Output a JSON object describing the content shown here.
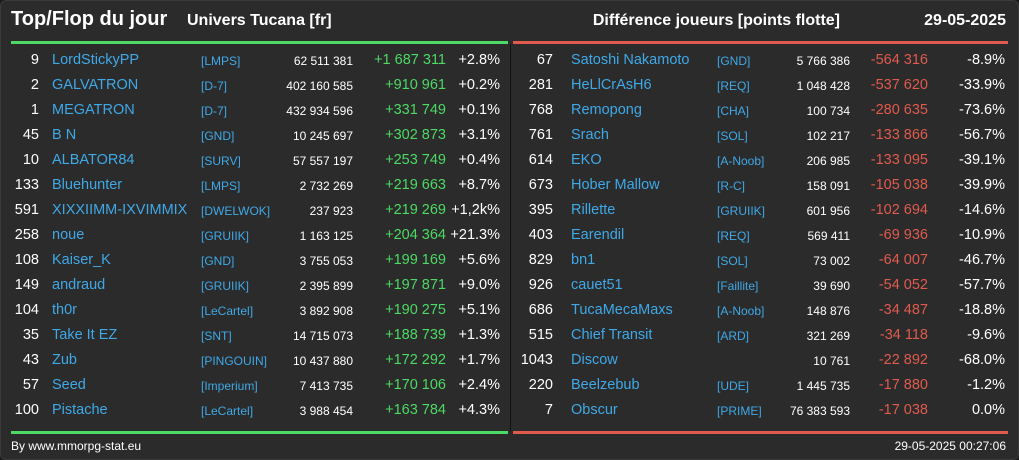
{
  "header": {
    "title": "Top/Flop du jour",
    "universe": "Univers Tucana [fr]",
    "metric": "Différence joueurs [points flotte]",
    "date": "29-05-2025"
  },
  "colors": {
    "gain": "#4cd964",
    "loss": "#e05a4e",
    "name": "#3fa9e8"
  },
  "top": [
    {
      "rank": "9",
      "name": "LordStickyPP",
      "alliance": "[LMPS]",
      "points": "62 511 381",
      "diff": "+1 687 311",
      "pct": "+2.8%"
    },
    {
      "rank": "2",
      "name": "GALVATRON",
      "alliance": "[D-7]",
      "points": "402 160 585",
      "diff": "+910 961",
      "pct": "+0.2%"
    },
    {
      "rank": "1",
      "name": "MEGATRON",
      "alliance": "[D-7]",
      "points": "432 934 596",
      "diff": "+331 749",
      "pct": "+0.1%"
    },
    {
      "rank": "45",
      "name": "B N",
      "alliance": "[GND]",
      "points": "10 245 697",
      "diff": "+302 873",
      "pct": "+3.1%"
    },
    {
      "rank": "10",
      "name": "ALBATOR84",
      "alliance": "[SURV]",
      "points": "57 557 197",
      "diff": "+253 749",
      "pct": "+0.4%"
    },
    {
      "rank": "133",
      "name": "Bluehunter",
      "alliance": "[LMPS]",
      "points": "2 732 269",
      "diff": "+219 663",
      "pct": "+8.7%"
    },
    {
      "rank": "591",
      "name": "XIXXIIMM-IXVIMMIX",
      "alliance": "[DWELWOK]",
      "points": "237 923",
      "diff": "+219 269",
      "pct": "+1,2k%"
    },
    {
      "rank": "258",
      "name": "noue",
      "alliance": "[GRUIIK]",
      "points": "1 163 125",
      "diff": "+204 364",
      "pct": "+21.3%"
    },
    {
      "rank": "108",
      "name": "Kaiser_K",
      "alliance": "[GND]",
      "points": "3 755 053",
      "diff": "+199 169",
      "pct": "+5.6%"
    },
    {
      "rank": "149",
      "name": "andraud",
      "alliance": "[GRUIIK]",
      "points": "2 395 899",
      "diff": "+197 871",
      "pct": "+9.0%"
    },
    {
      "rank": "104",
      "name": "th0r",
      "alliance": "[LeCartel]",
      "points": "3 892 908",
      "diff": "+190 275",
      "pct": "+5.1%"
    },
    {
      "rank": "35",
      "name": "Take It EZ",
      "alliance": "[SNT]",
      "points": "14 715 073",
      "diff": "+188 739",
      "pct": "+1.3%"
    },
    {
      "rank": "43",
      "name": "Zub",
      "alliance": "[PINGOUIN]",
      "points": "10 437 880",
      "diff": "+172 292",
      "pct": "+1.7%"
    },
    {
      "rank": "57",
      "name": "Seed",
      "alliance": "[Imperium]",
      "points": "7 413 735",
      "diff": "+170 106",
      "pct": "+2.4%"
    },
    {
      "rank": "100",
      "name": "Pistache",
      "alliance": "[LeCartel]",
      "points": "3 988 454",
      "diff": "+163 784",
      "pct": "+4.3%"
    }
  ],
  "flop": [
    {
      "rank": "67",
      "name": "Satoshi Nakamoto",
      "alliance": "[GND]",
      "points": "5 766 386",
      "diff": "-564 316",
      "pct": "-8.9%"
    },
    {
      "rank": "281",
      "name": "HeLlCrAsH6",
      "alliance": "[REQ]",
      "points": "1 048 428",
      "diff": "-537 620",
      "pct": "-33.9%"
    },
    {
      "rank": "768",
      "name": "Remopong",
      "alliance": "[CHA]",
      "points": "100 734",
      "diff": "-280 635",
      "pct": "-73.6%"
    },
    {
      "rank": "761",
      "name": "Srach",
      "alliance": "[SOL]",
      "points": "102 217",
      "diff": "-133 866",
      "pct": "-56.7%"
    },
    {
      "rank": "614",
      "name": "EKO",
      "alliance": "[A-Noob]",
      "points": "206 985",
      "diff": "-133 095",
      "pct": "-39.1%"
    },
    {
      "rank": "673",
      "name": "Hober Mallow",
      "alliance": "[R-C]",
      "points": "158 091",
      "diff": "-105 038",
      "pct": "-39.9%"
    },
    {
      "rank": "395",
      "name": "Rillette",
      "alliance": "[GRUIIK]",
      "points": "601 956",
      "diff": "-102 694",
      "pct": "-14.6%"
    },
    {
      "rank": "403",
      "name": "Earendil",
      "alliance": "[REQ]",
      "points": "569 411",
      "diff": "-69 936",
      "pct": "-10.9%"
    },
    {
      "rank": "829",
      "name": "bn1",
      "alliance": "[SOL]",
      "points": "73 002",
      "diff": "-64 007",
      "pct": "-46.7%"
    },
    {
      "rank": "926",
      "name": "cauet51",
      "alliance": "[Faillite]",
      "points": "39 690",
      "diff": "-54 052",
      "pct": "-57.7%"
    },
    {
      "rank": "686",
      "name": "TucaMecaMaxs",
      "alliance": "[A-Noob]",
      "points": "148 876",
      "diff": "-34 487",
      "pct": "-18.8%"
    },
    {
      "rank": "515",
      "name": "Chief Transit",
      "alliance": "[ARD]",
      "points": "321 269",
      "diff": "-34 118",
      "pct": "-9.6%"
    },
    {
      "rank": "1043",
      "name": "Discow",
      "alliance": "",
      "points": "10 761",
      "diff": "-22 892",
      "pct": "-68.0%"
    },
    {
      "rank": "220",
      "name": "Beelzebub",
      "alliance": "[UDE]",
      "points": "1 445 735",
      "diff": "-17 880",
      "pct": "-1.2%"
    },
    {
      "rank": "7",
      "name": "Obscur",
      "alliance": "[PRIME]",
      "points": "76 383 593",
      "diff": "-17 038",
      "pct": "0.0%"
    }
  ],
  "footer": {
    "credit": "By www.mmorpg-stat.eu",
    "timestamp": "29-05-2025 00:27:06"
  }
}
